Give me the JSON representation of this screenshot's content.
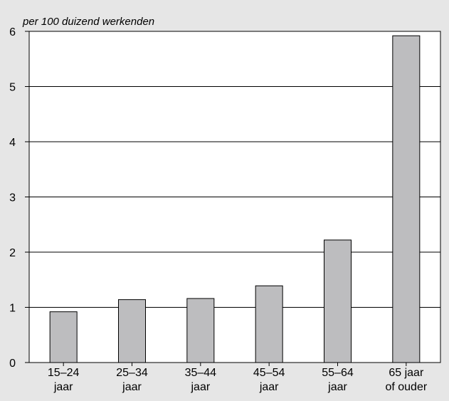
{
  "chart_data": {
    "type": "bar",
    "title": "",
    "unit_label": "per 100 duizend werkenden",
    "xlabel": "",
    "ylabel": "",
    "categories": [
      [
        "15–24",
        "jaar"
      ],
      [
        "25–34",
        "jaar"
      ],
      [
        "35–44",
        "jaar"
      ],
      [
        "45–54",
        "jaar"
      ],
      [
        "55–64",
        "jaar"
      ],
      [
        "65 jaar",
        "of ouder"
      ]
    ],
    "values": [
      0.92,
      1.14,
      1.16,
      1.39,
      2.22,
      5.92
    ],
    "ylim": [
      0,
      6
    ],
    "yticks": [
      "0",
      "1",
      "2",
      "3",
      "4",
      "5",
      "6"
    ],
    "grid": "horizontal",
    "colors": {
      "bar_fill": "#bdbdbf",
      "bar_stroke": "#000000",
      "plot_background": "#ffffff",
      "figure_background": "#e6e6e6"
    }
  }
}
